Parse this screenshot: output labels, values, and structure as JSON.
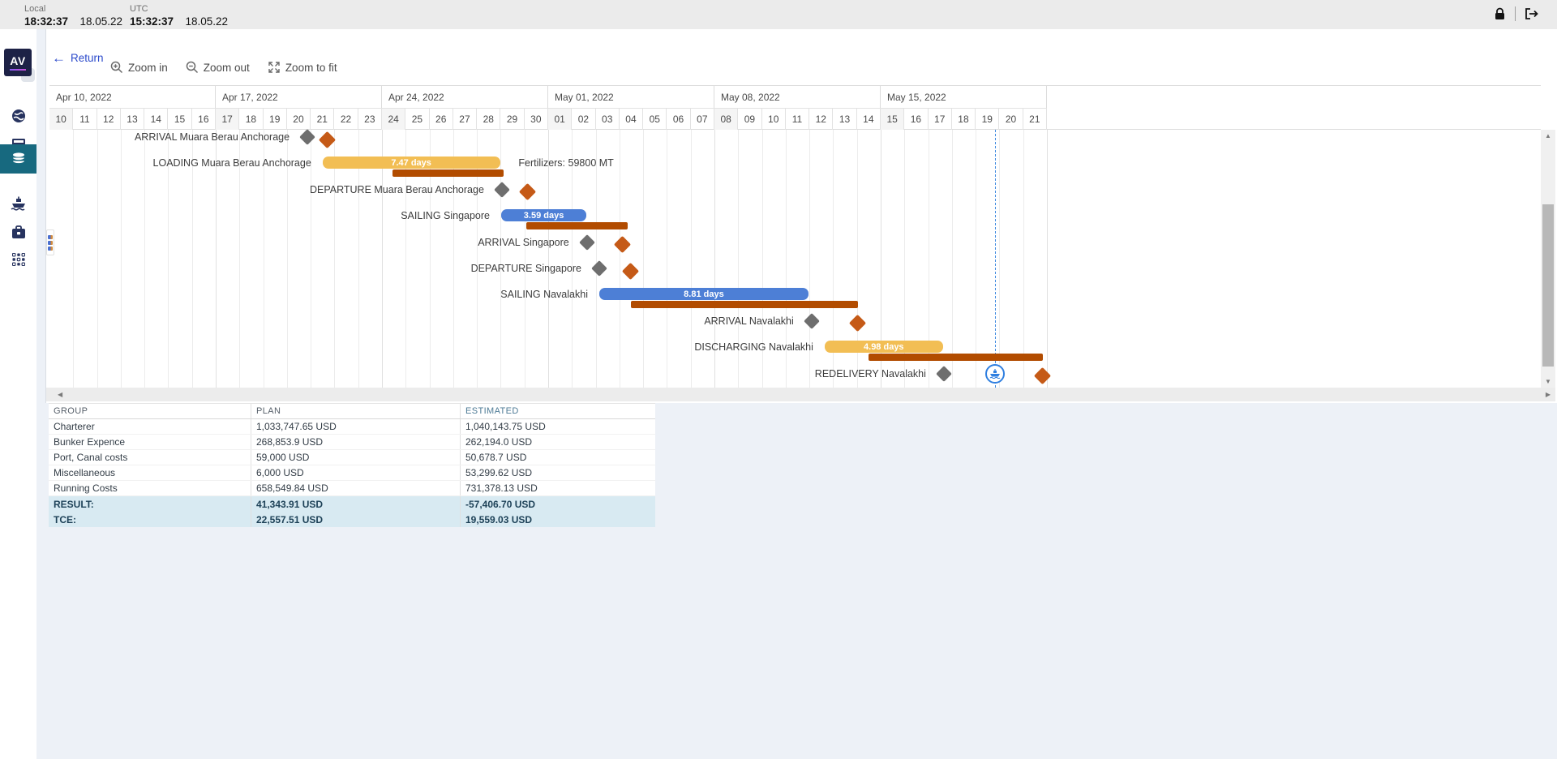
{
  "topbar": {
    "local_label": "Local",
    "local_time": "18:32:37",
    "local_date": "18.05.22",
    "utc_label": "UTC",
    "utc_time": "15:32:37",
    "utc_date": "18.05.22",
    "icons": [
      "lock-icon",
      "logout-icon"
    ]
  },
  "sidebar": {
    "logo_text": "AV",
    "items": [
      "globe",
      "estimations-table",
      "voyages-database",
      "vessel",
      "briefcase",
      "apps-grid"
    ],
    "active_item": "voyages-database",
    "colors": {
      "logo_bg": "#1d2246",
      "logo_accent": "#8a5cf5",
      "icon": "#27335f",
      "active_bg": "#17697f"
    }
  },
  "toolbar": {
    "return_label": "Return",
    "zoom_in_label": "Zoom in",
    "zoom_out_label": "Zoom out",
    "zoom_fit_label": "Zoom to fit",
    "return_color": "#2b4acb"
  },
  "gantt": {
    "weeks": [
      {
        "label": "Apr 10, 2022",
        "days": [
          "10",
          "11",
          "12",
          "13",
          "14",
          "15",
          "16"
        ]
      },
      {
        "label": "Apr 17, 2022",
        "days": [
          "17",
          "18",
          "19",
          "20",
          "21",
          "22",
          "23"
        ]
      },
      {
        "label": "Apr 24, 2022",
        "days": [
          "24",
          "25",
          "26",
          "27",
          "28",
          "29",
          "30"
        ]
      },
      {
        "label": "May 01, 2022",
        "days": [
          "01",
          "02",
          "03",
          "04",
          "05",
          "06",
          "07"
        ]
      },
      {
        "label": "May 08, 2022",
        "days": [
          "08",
          "09",
          "10",
          "11",
          "12",
          "13",
          "14"
        ]
      },
      {
        "label": "May 15, 2022",
        "days": [
          "15",
          "16",
          "17",
          "18",
          "19",
          "20",
          "21"
        ]
      }
    ],
    "total_days": 42,
    "now_day": 39.81,
    "rows": [
      {
        "label": "ARRIVAL Muara Berau Anchorage",
        "type": "milestone",
        "plan_day": 10.86,
        "actual_day": 11.71
      },
      {
        "label": "LOADING Muara Berau Anchorage",
        "type": "bar",
        "color": "#f2be54",
        "start_day": 11.5,
        "end_day": 18.97,
        "bar_label": "7.47 days",
        "actual_start_day": 14.44,
        "actual_end_day": 19.12,
        "annotation": "Fertilizers: 59800 MT",
        "annotation_day": 19.75
      },
      {
        "label": "DEPARTURE Muara Berau Anchorage",
        "type": "milestone",
        "plan_day": 19.05,
        "actual_day": 20.14
      },
      {
        "label": "SAILING Singapore",
        "type": "bar",
        "color": "#4d7fd6",
        "start_day": 19.02,
        "end_day": 22.61,
        "bar_label": "3.59 days",
        "actual_start_day": 20.07,
        "actual_end_day": 24.34
      },
      {
        "label": "ARRIVAL Singapore",
        "type": "milestone",
        "plan_day": 22.63,
        "actual_day": 24.14
      },
      {
        "label": "DEPARTURE Singapore",
        "type": "milestone",
        "plan_day": 23.15,
        "actual_day": 24.48
      },
      {
        "label": "SAILING Navalakhi",
        "type": "bar",
        "color": "#4d7fd6",
        "start_day": 23.15,
        "end_day": 31.96,
        "bar_label": "8.81 days",
        "actual_start_day": 24.48,
        "actual_end_day": 34.04
      },
      {
        "label": "ARRIVAL Navalakhi",
        "type": "milestone",
        "plan_day": 32.09,
        "actual_day": 34.04
      },
      {
        "label": "DISCHARGING Navalakhi",
        "type": "bar",
        "color": "#f2be54",
        "start_day": 32.64,
        "end_day": 37.62,
        "bar_label": "4.98 days",
        "actual_start_day": 34.48,
        "actual_end_day": 41.82
      },
      {
        "label": "REDELIVERY Navalakhi",
        "type": "milestone",
        "plan_day": 37.66,
        "actual_day": 41.82,
        "vessel_day": 39.81
      }
    ],
    "colors": {
      "plan_bar_yellow": "#f2be54",
      "plan_bar_blue": "#4d7fd6",
      "actual_bar": "#b24c00",
      "plan_milestone": "#6e6e6e",
      "actual_milestone": "#c55a17",
      "now_line": "#3f8ae0",
      "vessel_marker": "#2f7fe0"
    }
  },
  "finance_table": {
    "headers": [
      "GROUP",
      "PLAN",
      "ESTIMATED"
    ],
    "rows": [
      {
        "group": "Charterer",
        "plan": "1,033,747.65 USD",
        "estimated": "1,040,143.75 USD"
      },
      {
        "group": "Bunker Expence",
        "plan": "268,853.9 USD",
        "estimated": "262,194.0 USD"
      },
      {
        "group": "Port, Canal costs",
        "plan": "59,000 USD",
        "estimated": "50,678.7 USD"
      },
      {
        "group": "Miscellaneous",
        "plan": "6,000 USD",
        "estimated": "53,299.62 USD"
      },
      {
        "group": "Running Costs",
        "plan": "658,549.84 USD",
        "estimated": "731,378.13 USD"
      }
    ],
    "summary": [
      {
        "group": "RESULT:",
        "plan": "41,343.91 USD",
        "estimated": "-57,406.70 USD"
      },
      {
        "group": "TCE:",
        "plan": "22,557.51 USD",
        "estimated": "19,559.03 USD"
      }
    ],
    "summary_bg": "#d8eaf2"
  }
}
